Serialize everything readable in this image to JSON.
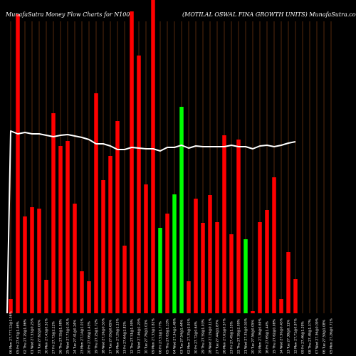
{
  "chart_data": {
    "type": "bar",
    "title": "MunafaSutra  Money Flow  Charts for N100",
    "subtitle": "(MOTILAL  OSWAL  FINA GROWTH UNITS) MunafaSutra.com",
    "xlabel": "",
    "ylabel": "",
    "ylim": [
      0,
      440
    ],
    "grid": "vertical",
    "background": "#000000",
    "colors": {
      "up": "#00ff00",
      "down": "#ff0000",
      "line": "#ffffff",
      "grid": "#8b4513"
    },
    "categories": [
      "06 Mon 27.777.12@1.36%",
      "05 Fri 27.67@1.46%",
      "02 Thu 27.29@1.96%",
      "01 Wed 27.53@0.23%",
      "31 Tue 27.62@0.00%",
      "30 Mon 27.43@0.52%",
      "27 Fri 27.73@2.12%",
      "26 Thu 27.55@1.08%",
      "25 Wed 27.73@1.91%",
      "24 Tue 27.41@0.24%",
      "23 Mon 27.14@1.01%",
      "20 Fri 27.06@1.43%",
      "19 Thu 27.25@1.72%",
      "18 Wed 27.16@0.53%",
      "17 Tue 27.05@0.65%",
      "16 Mon 27.29@1.13%",
      "13 Fri 27.64@2.82%",
      "12 Thu 27.51@1.09%",
      "11 Wed 27.46@1.20%",
      "10 Tue 27.76@1.01%",
      "09 Mon 27.33@1.82%",
      "06 Fri 27.51@1.77%",
      "05 Thu 27.63@1.13%",
      "04 Wed 27.34@1.48%",
      "03 Tue 27.54@1.44%",
      "02 Mon 27.35@1.91%",
      "30 Fri 27.72@0.64%",
      "29 Thu 27.59@1.03%",
      "28 Wed 27.19@0.11%",
      "27 Tue 27.44@1.87%",
      "26 Mon 27.61@0.57%",
      "23 Fri 27.49@1.35%",
      "22 Thu 27.59@2.09%",
      "21 Wed 27.35@0.53%",
      "20 Tue 27.56@0.05%",
      "19 Mon 27.36@0.69%",
      "16 Fri 27.69@1.44%",
      "15 Thu 27.62@0.08%",
      "14 Wed 27.50@0.43%",
      "13 Tue 27.38@0.11%",
      "12 Mon 27.71@0.97%",
      "09 Fri 27.46@1.29%",
      "08 Thu 27.48@1.37%",
      "07 Wed 27.36@0.09%",
      "06 Tue 27.59@1.08%",
      "05 Mon 27.26@0.71%"
    ],
    "series": [
      {
        "type": "bar",
        "values": [
          20,
          420,
          136,
          149,
          147,
          47,
          281,
          235,
          242,
          154,
          59,
          45,
          309,
          187,
          221,
          270,
          95,
          424,
          362,
          181,
          440,
          120,
          140,
          167,
          290,
          45,
          161,
          127,
          166,
          128,
          250,
          111,
          244,
          104,
          3,
          128,
          145,
          191,
          20,
          86,
          48,
          0,
          0,
          0,
          0,
          0
        ],
        "direction": [
          "down",
          "down",
          "down",
          "down",
          "down",
          "down",
          "down",
          "down",
          "down",
          "down",
          "down",
          "down",
          "down",
          "down",
          "down",
          "down",
          "down",
          "down",
          "down",
          "down",
          "down",
          "up",
          "down",
          "up",
          "up",
          "down",
          "down",
          "down",
          "down",
          "down",
          "down",
          "down",
          "down",
          "up",
          "down",
          "down",
          "down",
          "down",
          "down",
          "down",
          "down",
          "down",
          "down",
          "down",
          "down",
          "down"
        ]
      },
      {
        "type": "line",
        "values": [
          256,
          252,
          254,
          252,
          252,
          250,
          248,
          250,
          251,
          249,
          247,
          244,
          238,
          238,
          235,
          230,
          230,
          233,
          232,
          231,
          231,
          228,
          233,
          233,
          236,
          232,
          235,
          234,
          234,
          234,
          234,
          236,
          234,
          234,
          231,
          235,
          236,
          234,
          236,
          239,
          241,
          0,
          0,
          0,
          0,
          0
        ]
      }
    ]
  }
}
